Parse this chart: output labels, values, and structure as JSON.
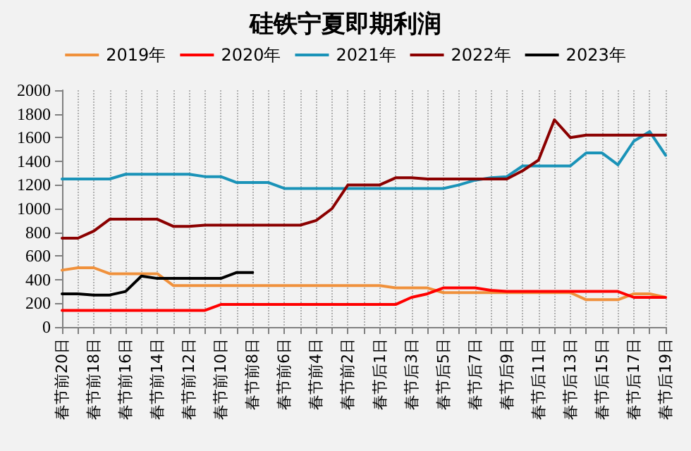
{
  "chart_data": {
    "type": "line",
    "title": "硅铁宁夏即期利润",
    "categories": [
      "春节前20日",
      null,
      "春节前18日",
      null,
      "春节前16日",
      null,
      "春节前14日",
      null,
      "春节前12日",
      null,
      "春节前10日",
      null,
      "春节前8日",
      null,
      "春节前6日",
      null,
      "春节前4日",
      null,
      "春节前2日",
      null,
      "春节后1日",
      null,
      "春节后3日",
      null,
      "春节后5日",
      null,
      "春节后7日",
      null,
      "春节后9日",
      null,
      "春节后11日",
      null,
      "春节后13日",
      null,
      "春节后15日",
      null,
      "春节后17日",
      null,
      "春节后19日"
    ],
    "series": [
      {
        "name": "2019年",
        "color": "#f0913c",
        "values": [
          480,
          500,
          500,
          450,
          450,
          450,
          450,
          350,
          350,
          350,
          350,
          350,
          350,
          350,
          350,
          350,
          350,
          350,
          350,
          350,
          350,
          330,
          330,
          330,
          290,
          290,
          290,
          290,
          290,
          290,
          290,
          290,
          290,
          230,
          230,
          230,
          280,
          280,
          250
        ]
      },
      {
        "name": "2020年",
        "color": "#ff0000",
        "values": [
          140,
          140,
          140,
          140,
          140,
          140,
          140,
          140,
          140,
          140,
          190,
          190,
          190,
          190,
          190,
          190,
          190,
          190,
          190,
          190,
          190,
          190,
          250,
          280,
          330,
          330,
          330,
          310,
          300,
          300,
          300,
          300,
          300,
          300,
          300,
          300,
          250,
          250,
          250
        ]
      },
      {
        "name": "2021年",
        "color": "#1a93b8",
        "values": [
          1250,
          1250,
          1250,
          1250,
          1290,
          1290,
          1290,
          1290,
          1290,
          1270,
          1270,
          1220,
          1220,
          1220,
          1170,
          1170,
          1170,
          1170,
          1170,
          1170,
          1170,
          1170,
          1170,
          1170,
          1170,
          1200,
          1240,
          1260,
          1270,
          1360,
          1360,
          1360,
          1360,
          1470,
          1470,
          1370,
          1570,
          1650,
          1450
        ]
      },
      {
        "name": "2022年",
        "color": "#8b0000",
        "values": [
          750,
          750,
          810,
          910,
          910,
          910,
          910,
          850,
          850,
          860,
          860,
          860,
          860,
          860,
          860,
          860,
          900,
          1000,
          1200,
          1200,
          1200,
          1260,
          1260,
          1250,
          1250,
          1250,
          1250,
          1250,
          1250,
          1320,
          1410,
          1750,
          1600,
          1620,
          1620,
          1620,
          1620,
          1620,
          1620
        ]
      },
      {
        "name": "2023年",
        "color": "#000000",
        "values": [
          280,
          280,
          270,
          270,
          300,
          430,
          410,
          410,
          410,
          410,
          410,
          460,
          460,
          null,
          null,
          null,
          null,
          null,
          null,
          null,
          null,
          null,
          null,
          null,
          null,
          null,
          null,
          null,
          null,
          null,
          null,
          null,
          null,
          null,
          null,
          null,
          null,
          null,
          null
        ]
      }
    ],
    "ylim": [
      0,
      2000
    ],
    "yticks": [
      0,
      200,
      400,
      600,
      800,
      1000,
      1200,
      1400,
      1600,
      1800,
      2000
    ],
    "grid": "x",
    "legend": "top",
    "marker": "none",
    "line_style": "solid"
  }
}
